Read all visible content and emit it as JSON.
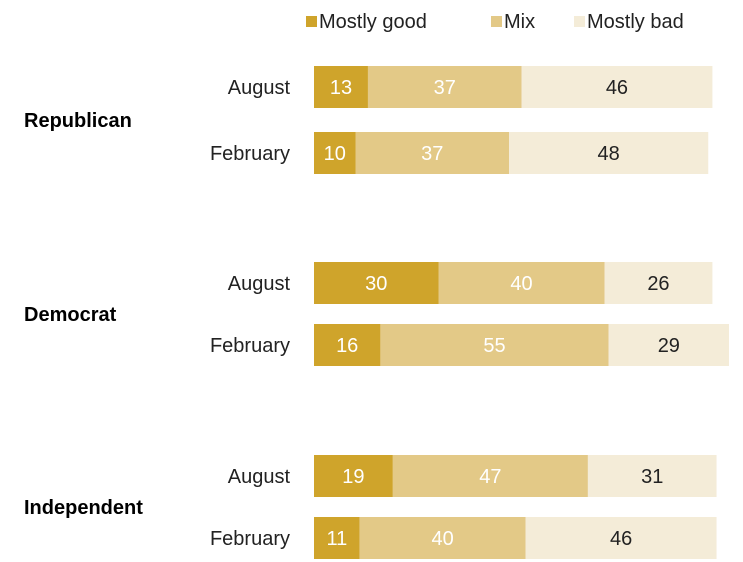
{
  "chart_data": {
    "type": "bar",
    "orientation": "horizontal",
    "stacked": true,
    "title": "",
    "xlabel": "",
    "ylabel": "",
    "series": [
      {
        "name": "Mostly good",
        "color": "#cfa42b"
      },
      {
        "name": "Mix",
        "color": "#e3c987"
      },
      {
        "name": "Mostly bad",
        "color": "#f4ecd8"
      }
    ],
    "groups": [
      {
        "name": "Republican",
        "rows": [
          {
            "label": "August",
            "values": [
              13,
              37,
              46
            ]
          },
          {
            "label": "February",
            "values": [
              10,
              37,
              48
            ]
          }
        ]
      },
      {
        "name": "Democrat",
        "rows": [
          {
            "label": "August",
            "values": [
              30,
              40,
              26
            ]
          },
          {
            "label": "February",
            "values": [
              16,
              55,
              29
            ]
          }
        ]
      },
      {
        "name": "Independent",
        "rows": [
          {
            "label": "August",
            "values": [
              19,
              47,
              31
            ]
          },
          {
            "label": "February",
            "values": [
              11,
              40,
              46
            ]
          }
        ]
      }
    ],
    "label_colors": [
      "#ffffff",
      "#ffffff",
      "#222222"
    ],
    "legend_position": "top-right"
  }
}
